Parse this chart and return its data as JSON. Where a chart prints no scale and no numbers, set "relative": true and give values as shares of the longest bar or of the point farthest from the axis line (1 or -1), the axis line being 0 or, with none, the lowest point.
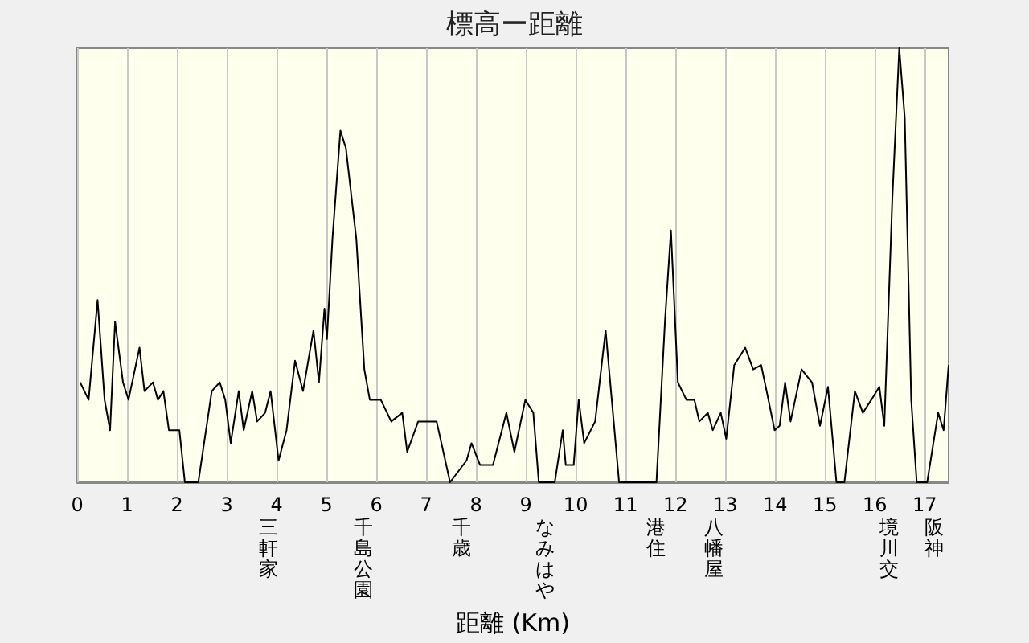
{
  "chart_data": {
    "type": "line",
    "title": "標高ー距離",
    "xlabel": "距離 (Km)",
    "relative": true,
    "color": "#000000",
    "x": [
      0.06,
      0.23,
      0.41,
      0.55,
      0.66,
      0.76,
      0.92,
      1.03,
      1.25,
      1.35,
      1.52,
      1.62,
      1.73,
      1.84,
      2.05,
      2.16,
      2.43,
      2.7,
      2.86,
      2.97,
      3.08,
      3.24,
      3.34,
      3.51,
      3.61,
      3.77,
      3.88,
      4.04,
      4.2,
      4.37,
      4.53,
      4.74,
      4.85,
      4.96,
      5.01,
      5.12,
      5.28,
      5.39,
      5.6,
      5.76,
      5.87,
      6.09,
      6.3,
      6.52,
      6.62,
      6.84,
      7.21,
      7.48,
      7.81,
      7.91,
      8.08,
      8.34,
      8.61,
      8.77,
      8.99,
      9.15,
      9.26,
      9.58,
      9.74,
      9.8,
      9.96,
      10.06,
      10.17,
      10.39,
      10.6,
      10.87,
      11.62,
      11.79,
      11.91,
      12.05,
      12.22,
      12.38,
      12.48,
      12.65,
      12.75,
      12.91,
      13.02,
      13.18,
      13.4,
      13.56,
      13.72,
      13.83,
      13.99,
      14.09,
      14.2,
      14.31,
      14.53,
      14.74,
      14.9,
      15.06,
      15.23,
      15.39,
      15.6,
      15.76,
      15.93,
      16.09,
      16.19,
      16.35,
      16.49,
      16.6,
      16.73,
      16.84,
      17.05,
      17.27,
      17.38,
      17.48
    ],
    "values": [
      0.23,
      0.19,
      0.42,
      0.19,
      0.12,
      0.37,
      0.23,
      0.19,
      0.31,
      0.21,
      0.23,
      0.19,
      0.21,
      0.12,
      0.12,
      0,
      0,
      0.21,
      0.23,
      0.19,
      0.09,
      0.21,
      0.12,
      0.21,
      0.14,
      0.16,
      0.21,
      0.05,
      0.12,
      0.28,
      0.21,
      0.35,
      0.23,
      0.4,
      0.33,
      0.56,
      0.81,
      0.77,
      0.56,
      0.26,
      0.19,
      0.19,
      0.14,
      0.16,
      0.07,
      0.14,
      0.14,
      0,
      0.05,
      0.09,
      0.04,
      0.04,
      0.16,
      0.07,
      0.19,
      0.16,
      0,
      0,
      0.12,
      0.04,
      0.04,
      0.19,
      0.09,
      0.14,
      0.35,
      0,
      0,
      0.37,
      0.58,
      0.23,
      0.19,
      0.19,
      0.14,
      0.16,
      0.12,
      0.16,
      0.1,
      0.27,
      0.31,
      0.26,
      0.27,
      0.21,
      0.12,
      0.13,
      0.23,
      0.14,
      0.26,
      0.23,
      0.13,
      0.22,
      0,
      0,
      0.21,
      0.16,
      0.19,
      0.22,
      0.13,
      0.65,
      1,
      0.84,
      0.19,
      0,
      0,
      0.16,
      0.12,
      0.27
    ],
    "xlim": [
      0,
      17.48
    ],
    "xticks": [
      0,
      1,
      2,
      3,
      4,
      5,
      6,
      7,
      8,
      9,
      10,
      11,
      12,
      13,
      14,
      15,
      16,
      17
    ],
    "grid": "x",
    "marker": "none",
    "annotations": [
      "三軒家",
      "千島公園",
      "千歳",
      "なみはや",
      "港住",
      "八幡屋",
      "境川交",
      "阪神"
    ]
  }
}
